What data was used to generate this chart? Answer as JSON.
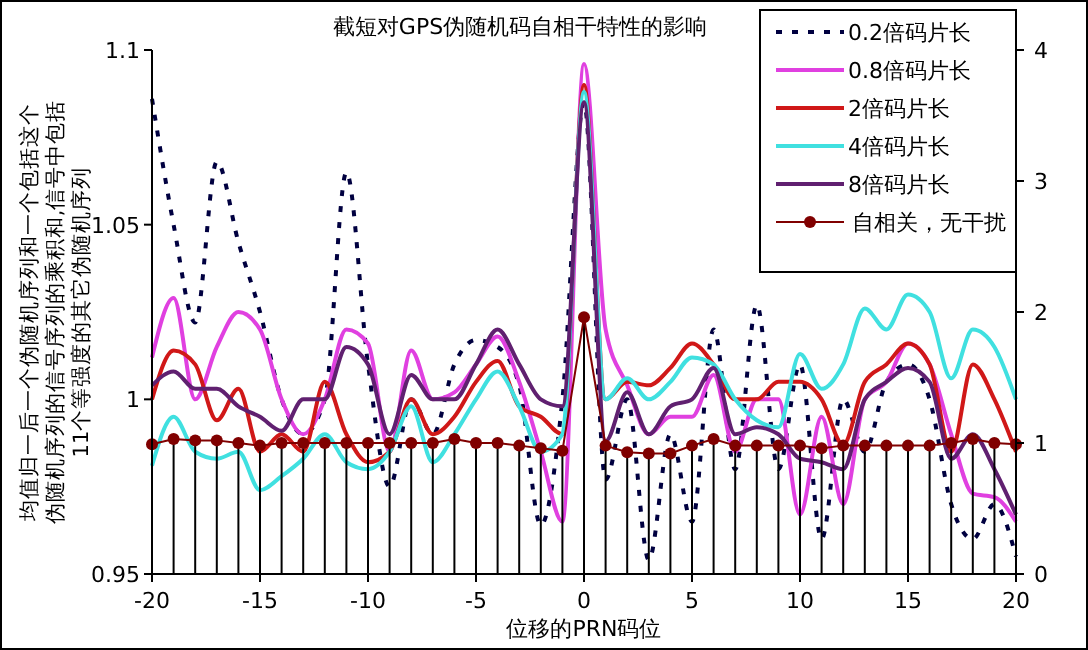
{
  "chart_data": {
    "type": "line",
    "title": "截短对GPS伪随机码自相干特性的影响",
    "xlabel": "位移的PRN码位",
    "ylabel": "均值归一后一个伪随机序列和一个包括这个伪随机序列的信号序列的乘积和,信号中包括11个等强度的其它伪随机序列",
    "x": [
      -20,
      -19,
      -18,
      -17,
      -16,
      -15,
      -14,
      -13,
      -12,
      -11,
      -10,
      -9,
      -8,
      -7,
      -6,
      -5,
      -4,
      -3,
      -2,
      -1,
      0,
      1,
      2,
      3,
      4,
      5,
      6,
      7,
      8,
      9,
      10,
      11,
      12,
      13,
      14,
      15,
      16,
      17,
      18,
      19,
      20
    ],
    "series": [
      {
        "name": "0.2倍码片长",
        "color": "#000040",
        "line_style": "dashed",
        "values": [
          1.086,
          1.05,
          1.022,
          1.068,
          1.045,
          1.025,
          1.0,
          0.99,
          1.0,
          1.065,
          1.01,
          0.975,
          1.0,
          0.99,
          1.01,
          1.017,
          1.015,
          1.004,
          0.964,
          1.0,
          1.085,
          0.977,
          1.0,
          0.954,
          0.99,
          0.965,
          1.02,
          0.98,
          1.027,
          0.98,
          1.01,
          0.96,
          1.0,
          0.985,
          1.005,
          1.01,
          1.0,
          0.97,
          0.96,
          0.97,
          0.955
        ]
      },
      {
        "name": "0.8倍码片长",
        "color": "#e040e0",
        "values": [
          1.012,
          1.029,
          1.0,
          1.015,
          1.025,
          1.02,
          1.0,
          0.99,
          1.0,
          1.02,
          1.016,
          0.985,
          1.014,
          1.0,
          1.002,
          1.01,
          1.018,
          1.005,
          0.985,
          0.965,
          1.096,
          1.02,
          1.004,
          0.99,
          0.995,
          0.995,
          1.007,
          0.985,
          1.0,
          1.0,
          0.967,
          0.995,
          0.97,
          1.0,
          1.005,
          1.016,
          1.01,
          0.99,
          0.973,
          0.972,
          0.965
        ]
      },
      {
        "name": "2倍码片长",
        "color": "#d01818",
        "values": [
          1.0,
          1.014,
          1.01,
          0.994,
          1.003,
          0.985,
          0.99,
          0.985,
          1.005,
          0.99,
          0.982,
          0.985,
          1.0,
          0.99,
          0.995,
          1.005,
          1.011,
          0.998,
          0.995,
          0.99,
          1.09,
          1.0,
          1.005,
          1.004,
          1.009,
          1.016,
          1.01,
          1.0,
          1.0,
          1.005,
          1.005,
          1.0,
          0.987,
          1.005,
          1.01,
          1.016,
          1.01,
          0.985,
          1.01,
          1.0,
          0.985
        ]
      },
      {
        "name": "4倍码片长",
        "color": "#40e0e0",
        "values": [
          0.981,
          0.995,
          0.985,
          0.983,
          0.985,
          0.974,
          0.978,
          0.983,
          0.99,
          0.982,
          0.98,
          0.985,
          0.998,
          0.982,
          0.99,
          1.0,
          1.008,
          0.998,
          0.985,
          0.99,
          1.088,
          1.0,
          1.006,
          1.0,
          1.005,
          1.012,
          1.01,
          1.0,
          0.994,
          0.992,
          1.013,
          1.003,
          1.01,
          1.026,
          1.02,
          1.03,
          1.025,
          1.006,
          1.02,
          1.015,
          1.0
        ]
      },
      {
        "name": "8倍码片长",
        "color": "#602070",
        "values": [
          1.004,
          1.008,
          1.003,
          1.003,
          0.998,
          0.995,
          0.991,
          1.0,
          1.0,
          1.015,
          1.01,
          0.99,
          1.007,
          1.0,
          1.0,
          1.01,
          1.02,
          1.01,
          1.0,
          0.998,
          1.085,
          0.988,
          1.002,
          0.99,
          0.998,
          1.0,
          1.009,
          0.99,
          0.992,
          0.99,
          0.983,
          0.982,
          0.98,
          1.0,
          1.005,
          1.009,
          1.005,
          0.983,
          0.99,
          0.98,
          0.967
        ]
      },
      {
        "name": "自相关，无干扰",
        "type": "lollipop",
        "axis": "y2",
        "color": "#800000",
        "marker": "circle",
        "values": [
          0.99,
          1.03,
          1.02,
          1.02,
          1.0,
          0.98,
          1.0,
          1.0,
          1.0,
          1.0,
          1.0,
          1.0,
          1.0,
          1.0,
          1.03,
          1.0,
          1.0,
          0.98,
          0.96,
          0.94,
          1.96,
          0.98,
          0.93,
          0.92,
          0.92,
          0.98,
          1.03,
          0.98,
          0.98,
          0.98,
          0.98,
          0.96,
          0.98,
          0.98,
          0.98,
          0.98,
          0.98,
          1.0,
          1.03,
          1.0,
          0.99
        ]
      },
      {
        "type": "line",
        "axis": "y2",
        "color": "#800000",
        "values": [
          0.99,
          1.03,
          1.02,
          1.02,
          1.0,
          0.98,
          1.0,
          1.0,
          1.0,
          1.0,
          1.0,
          1.0,
          1.0,
          1.0,
          1.03,
          1.0,
          1.0,
          0.98,
          0.96,
          0.94,
          1.96,
          0.98,
          0.93,
          0.92,
          0.92,
          0.98,
          1.03,
          0.98,
          0.98,
          0.98,
          0.98,
          0.96,
          0.98,
          0.98,
          0.98,
          0.98,
          0.98,
          1.0,
          1.03,
          1.0,
          0.99
        ]
      }
    ],
    "xlim": [
      -20,
      20
    ],
    "xticks": [
      -20,
      -15,
      -10,
      -5,
      0,
      5,
      10,
      15,
      20
    ],
    "ylim": [
      0.95,
      1.1
    ],
    "yticks": [
      0.95,
      1,
      1.05,
      1.1
    ],
    "y2lim": [
      0,
      4
    ],
    "y2ticks": [
      0,
      1,
      2,
      3,
      4
    ],
    "legend": "top right",
    "grid": false
  }
}
